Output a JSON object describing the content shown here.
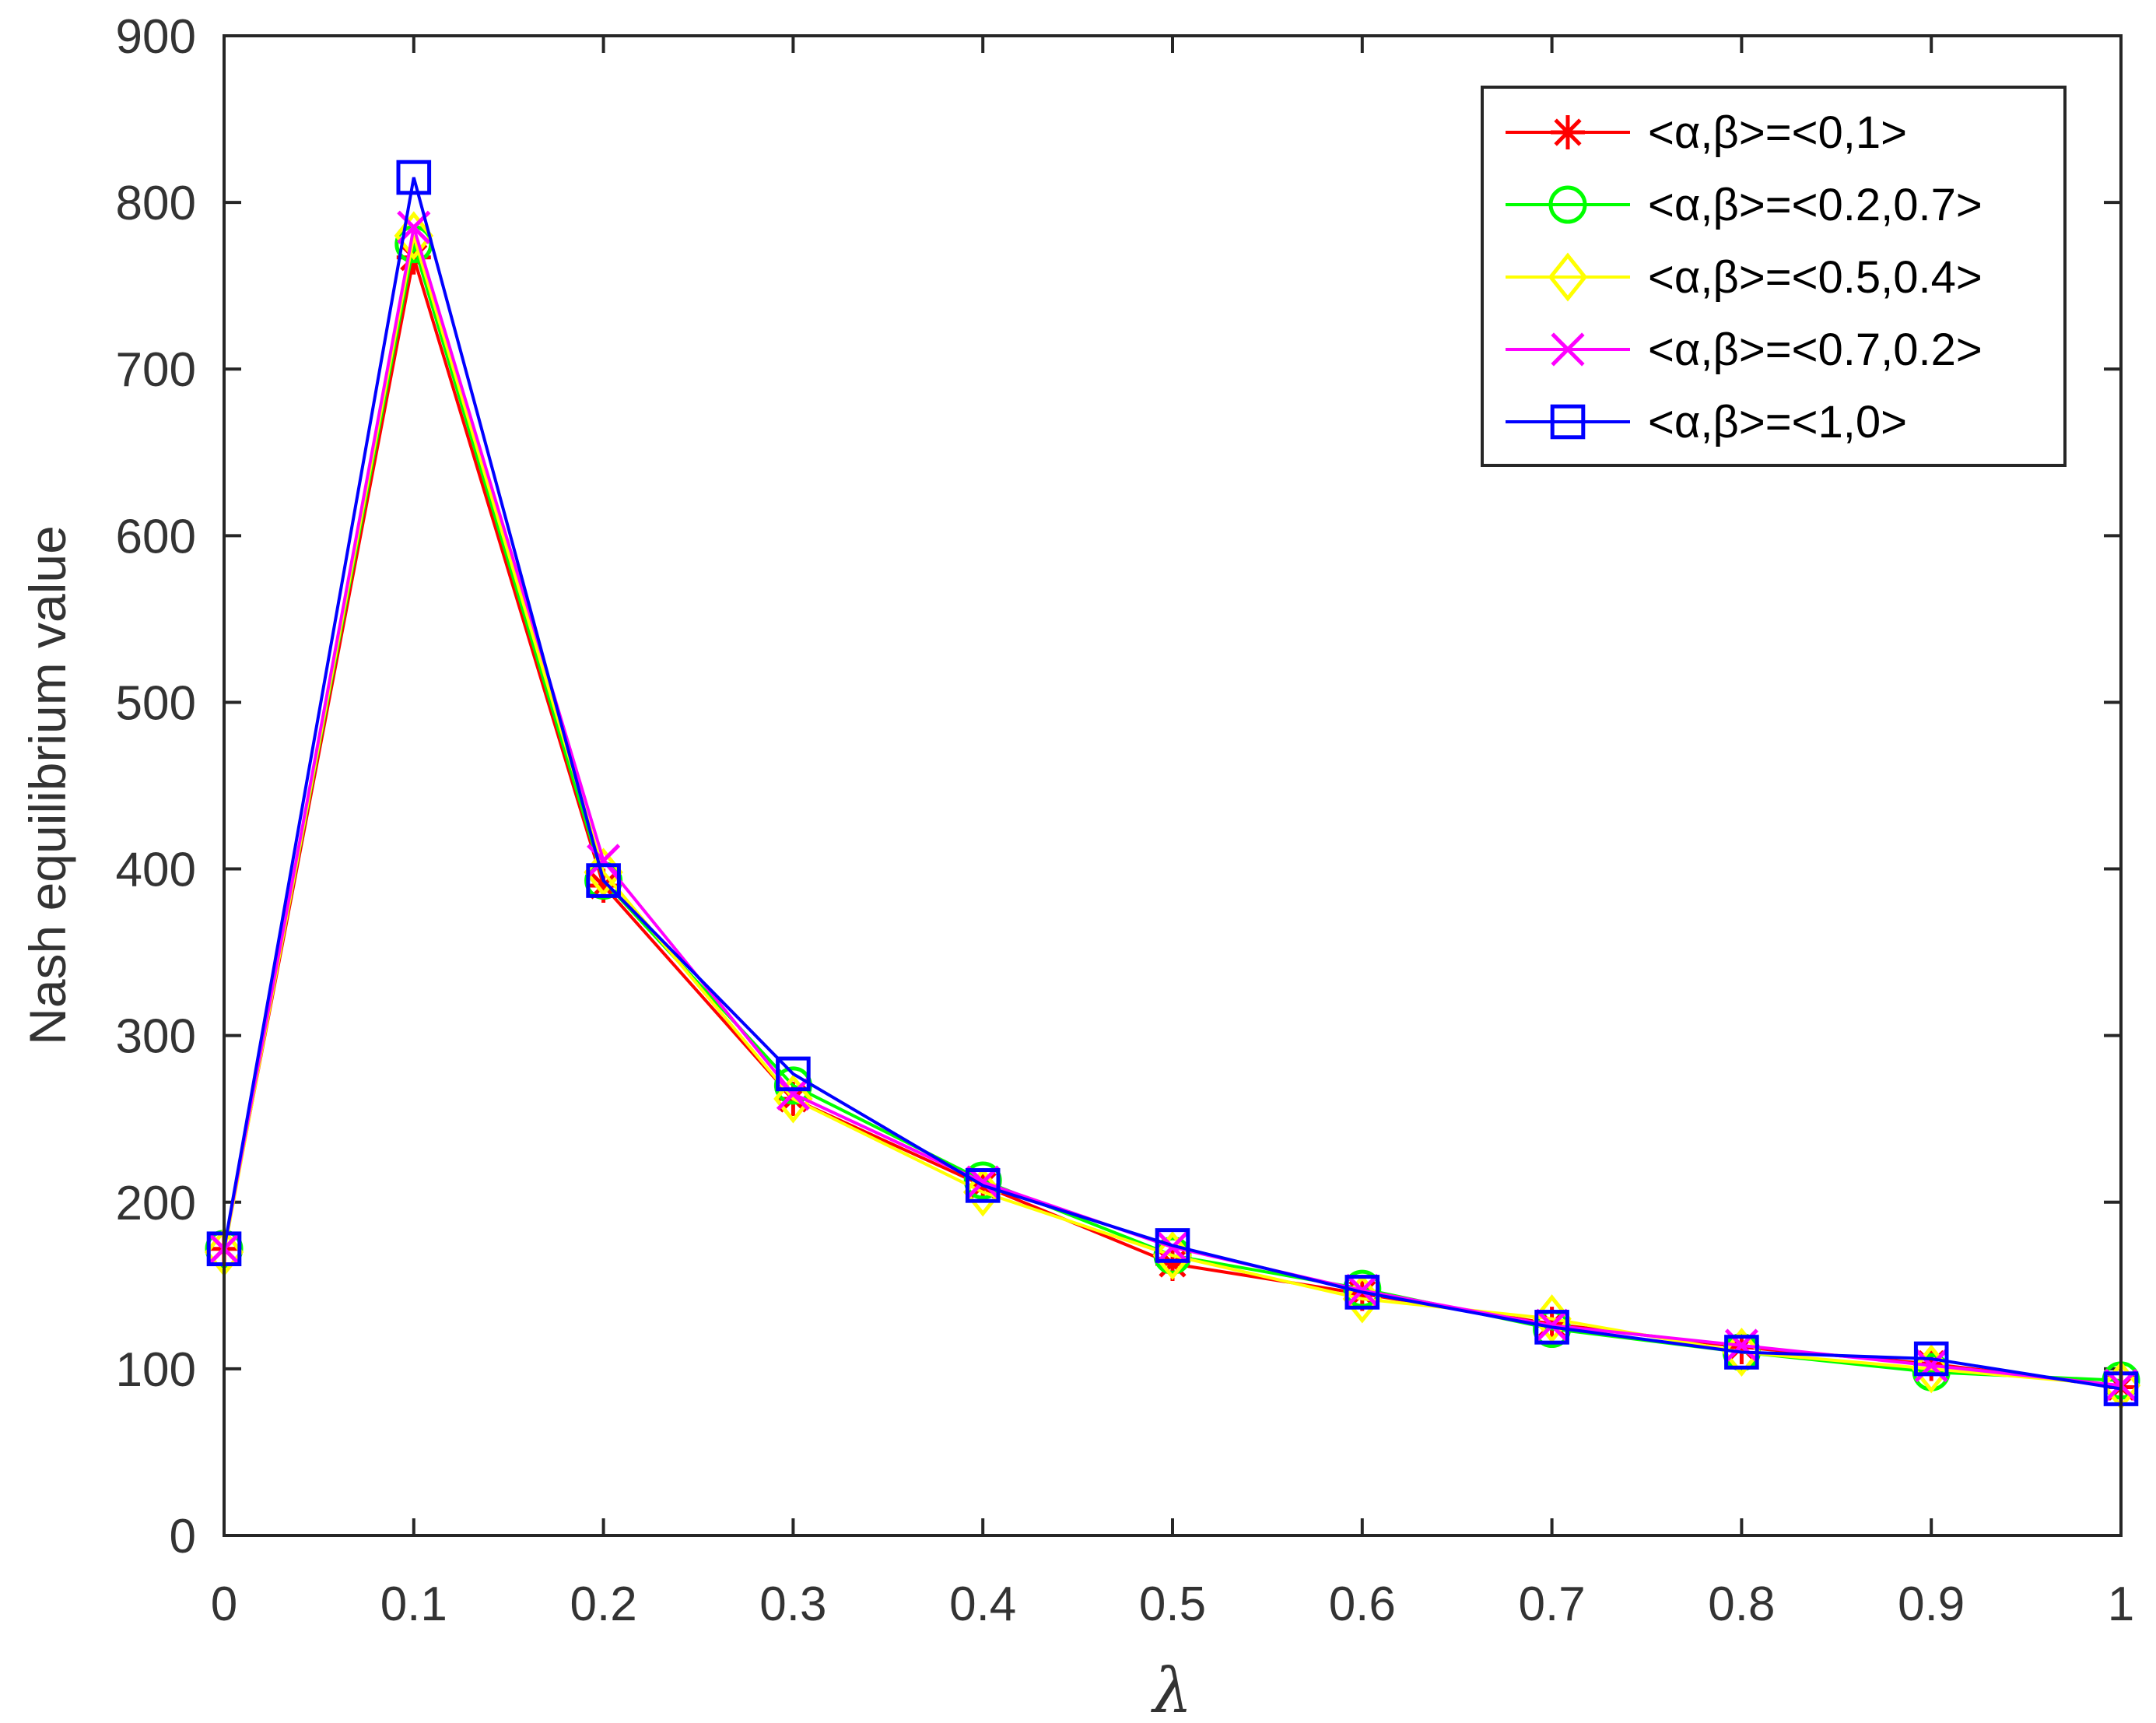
{
  "chart_data": {
    "type": "line",
    "xlabel": "λ",
    "ylabel": "Nash equilibrium value",
    "xlim": [
      0,
      1
    ],
    "ylim": [
      0,
      900
    ],
    "x": [
      0,
      0.1,
      0.2,
      0.3,
      0.4,
      0.5,
      0.6,
      0.7,
      0.8,
      0.9,
      1
    ],
    "xticks": [
      "0",
      "0.1",
      "0.2",
      "0.3",
      "0.4",
      "0.5",
      "0.6",
      "0.7",
      "0.8",
      "0.9",
      "1"
    ],
    "yticks": [
      "0",
      "100",
      "200",
      "300",
      "400",
      "500",
      "600",
      "700",
      "800",
      "900"
    ],
    "ytick_values": [
      0,
      100,
      200,
      300,
      400,
      500,
      600,
      700,
      800,
      900
    ],
    "grid": false,
    "legend_position": "top-right",
    "series": [
      {
        "name": "<α,β>=<0,1>",
        "color": "#ff0000",
        "marker": "asterisk",
        "values": [
          172,
          767,
          390,
          262,
          210,
          163,
          145,
          127,
          113,
          103,
          89
        ]
      },
      {
        "name": "<α,β>=<0.2,0.7>",
        "color": "#00ff00",
        "marker": "circle",
        "values": [
          172,
          775,
          393,
          270,
          213,
          168,
          148,
          124,
          110,
          98,
          93
        ]
      },
      {
        "name": "<α,β>=<0.5,0.4>",
        "color": "#ffff00",
        "marker": "diamond",
        "values": [
          170,
          780,
          398,
          262,
          206,
          168,
          142,
          130,
          110,
          100,
          90
        ]
      },
      {
        "name": "<α,β>=<0.7,0.2>",
        "color": "#ff00ff",
        "marker": "x",
        "values": [
          172,
          785,
          405,
          265,
          212,
          173,
          147,
          126,
          114,
          102,
          90
        ]
      },
      {
        "name": "<α,β>=<1,0>",
        "color": "#0000ff",
        "marker": "square",
        "values": [
          172,
          815,
          393,
          277,
          210,
          174,
          146,
          125,
          110,
          106,
          88
        ]
      }
    ]
  }
}
